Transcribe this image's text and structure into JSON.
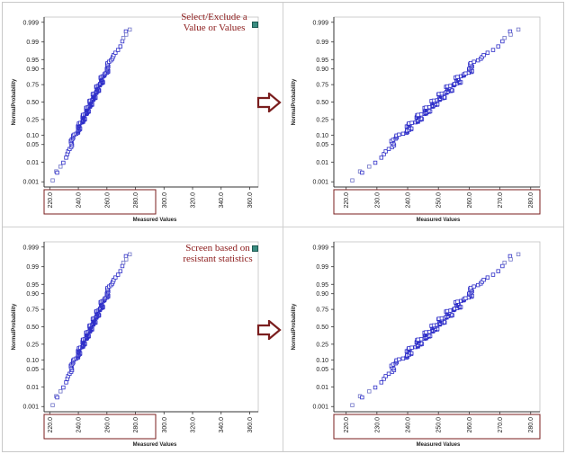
{
  "colors": {
    "marker": "#2e2ec8",
    "marker_light": "#6f73c8",
    "axis": "#333333",
    "highlight_box": "#7a1e1e",
    "note_text": "#8b1a1a",
    "arrow": "#7a1e1e"
  },
  "notes": {
    "top": "Select/Exclude a Value or Values",
    "bottom": "Screen based on resistant statistics"
  },
  "icons": [
    "arrow-right-icon",
    "note-marker-icon"
  ],
  "chart_data": [
    {
      "type": "scatter",
      "panel": "top-left",
      "xlabel": "Measured Values",
      "ylabel": "NormalProbability",
      "y_scale": "normal-probability",
      "x_ticks": [
        "220.0",
        "240.0",
        "260.0",
        "280.0",
        "300.0",
        "320.0",
        "340.0",
        "360.0"
      ],
      "y_ticks": [
        "0.001",
        "0.01",
        "0.05",
        "0.10",
        "0.25",
        "0.50",
        "0.75",
        "0.90",
        "0.95",
        "0.99",
        "0.999"
      ],
      "xlim": [
        216,
        366
      ],
      "ylim_probability": [
        0.0005,
        0.9995
      ],
      "x_ticks_highlighted": true,
      "series": [
        {
          "x_range": [
            222.0,
            276.0
          ],
          "y_range": [
            0.001,
            0.997
          ]
        }
      ]
    },
    {
      "type": "scatter",
      "panel": "top-right",
      "xlabel": "Measured Values",
      "ylabel": "NormalProbability",
      "y_scale": "normal-probability",
      "x_ticks": [
        "220.0",
        "230.0",
        "240.0",
        "250.0",
        "260.0",
        "270.0",
        "280.0"
      ],
      "y_ticks": [
        "0.001",
        "0.01",
        "0.05",
        "0.10",
        "0.25",
        "0.50",
        "0.75",
        "0.90",
        "0.95",
        "0.99",
        "0.999"
      ],
      "xlim": [
        216,
        283
      ],
      "ylim_probability": [
        0.0005,
        0.9995
      ],
      "x_ticks_highlighted": true,
      "series": [
        {
          "x_range": [
            222.0,
            276.0
          ],
          "y_range": [
            0.001,
            0.997
          ]
        }
      ]
    },
    {
      "type": "scatter",
      "panel": "bottom-left",
      "xlabel": "Measured Values",
      "ylabel": "NormalProbability",
      "y_scale": "normal-probability",
      "x_ticks": [
        "220.0",
        "240.0",
        "260.0",
        "280.0",
        "300.0",
        "320.0",
        "340.0",
        "360.0"
      ],
      "y_ticks": [
        "0.001",
        "0.01",
        "0.05",
        "0.10",
        "0.25",
        "0.50",
        "0.75",
        "0.90",
        "0.95",
        "0.99",
        "0.999"
      ],
      "xlim": [
        216,
        366
      ],
      "ylim_probability": [
        0.0005,
        0.9995
      ],
      "x_ticks_highlighted": true,
      "series": [
        {
          "x_range": [
            222.0,
            276.0
          ],
          "y_range": [
            0.001,
            0.997
          ]
        }
      ]
    },
    {
      "type": "scatter",
      "panel": "bottom-right",
      "xlabel": "Measured Values",
      "ylabel": "NormalProbability",
      "y_scale": "normal-probability",
      "x_ticks": [
        "220.0",
        "230.0",
        "240.0",
        "250.0",
        "260.0",
        "270.0",
        "280.0"
      ],
      "y_ticks": [
        "0.001",
        "0.01",
        "0.05",
        "0.10",
        "0.25",
        "0.50",
        "0.75",
        "0.90",
        "0.95",
        "0.99",
        "0.999"
      ],
      "xlim": [
        216,
        283
      ],
      "ylim_probability": [
        0.0005,
        0.9995
      ],
      "x_ticks_highlighted": true,
      "series": [
        {
          "x_range": [
            222.0,
            276.0
          ],
          "y_range": [
            0.001,
            0.997
          ]
        }
      ]
    }
  ]
}
